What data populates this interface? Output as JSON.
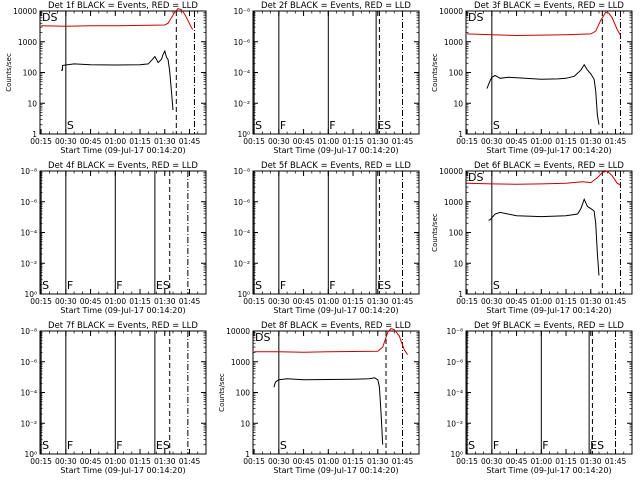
{
  "chart_data": [
    {
      "type": "line",
      "title": "Det 1f BLACK = Events, RED = LLD",
      "corner_label": "DS",
      "xlabel": "Start Time (09-Jul-17 00:14:20)",
      "ylabel": "Counts/sec",
      "y_scale": "log",
      "yticks": [
        "1",
        "10",
        "100",
        "1000",
        "10000"
      ],
      "xticks": [
        "00:15",
        "00:30",
        "00:45",
        "01:00",
        "01:15",
        "01:30",
        "01:45"
      ],
      "markers": [
        {
          "t": "00:30",
          "label": "S",
          "style": "solid"
        },
        {
          "t": "01:37",
          "label": "",
          "style": "dashed"
        },
        {
          "t": "01:48",
          "label": "",
          "style": "dashdot"
        }
      ],
      "series": [
        {
          "name": "Events",
          "color": "#000000",
          "points": [
            [
              "00:27",
              120
            ],
            [
              "00:28",
              120
            ],
            [
              "00:28",
              170
            ],
            [
              "00:35",
              190
            ],
            [
              "00:45",
              180
            ],
            [
              "01:00",
              175
            ],
            [
              "01:15",
              180
            ],
            [
              "01:20",
              190
            ],
            [
              "01:24",
              330
            ],
            [
              "01:26",
              210
            ],
            [
              "01:28",
              270
            ],
            [
              "01:29",
              390
            ],
            [
              "01:30",
              500
            ],
            [
              "01:31",
              320
            ],
            [
              "01:32",
              260
            ],
            [
              "01:33",
              110
            ],
            [
              "01:34",
              25
            ],
            [
              "01:35",
              6
            ]
          ]
        },
        {
          "name": "LLD",
          "color": "#cc0000",
          "points": [
            [
              "00:15",
              3300
            ],
            [
              "00:30",
              3200
            ],
            [
              "00:45",
              3300
            ],
            [
              "01:00",
              3300
            ],
            [
              "01:15",
              3400
            ],
            [
              "01:30",
              3500
            ],
            [
              "01:32",
              4000
            ],
            [
              "01:34",
              6000
            ],
            [
              "01:36",
              9000
            ],
            [
              "01:38",
              12000
            ],
            [
              "01:40",
              11000
            ],
            [
              "01:42",
              8000
            ],
            [
              "01:44",
              5000
            ],
            [
              "01:46",
              3000
            ],
            [
              "01:47",
              2500
            ]
          ]
        }
      ]
    },
    {
      "type": "line",
      "title": "Det 2f BLACK = Events, RED = LLD",
      "corner_label": "",
      "xlabel": "Start Time (09-Jul-17 00:14:20)",
      "ylabel": "",
      "y_scale": "log",
      "yticks": [
        "10⁰",
        "10⁻²",
        "10⁻⁴",
        "10⁻⁶",
        "10⁻⁸"
      ],
      "xticks": [
        "00:15",
        "00:30",
        "00:45",
        "01:00",
        "01:15",
        "01:30",
        "01:45"
      ],
      "markers": [
        {
          "t": "00:15",
          "label": "S",
          "style": "solid"
        },
        {
          "t": "00:30",
          "label": "F",
          "style": "solid"
        },
        {
          "t": "01:00",
          "label": "F",
          "style": "solid"
        },
        {
          "t": "01:29",
          "label": "ES",
          "style": "solid"
        },
        {
          "t": "01:31",
          "label": "",
          "style": "dashed"
        },
        {
          "t": "01:45",
          "label": "",
          "style": "dashdot"
        }
      ],
      "series": []
    },
    {
      "type": "line",
      "title": "Det 3f BLACK = Events, RED = LLD",
      "corner_label": "DS",
      "xlabel": "Start Time (09-Jul-17 00:14:20)",
      "ylabel": "Counts/sec",
      "y_scale": "log",
      "yticks": [
        "1",
        "10",
        "100",
        "1000",
        "10000"
      ],
      "xticks": [
        "00:15",
        "00:30",
        "00:45",
        "01:00",
        "01:15",
        "01:30",
        "01:45"
      ],
      "markers": [
        {
          "t": "00:30",
          "label": "S",
          "style": "solid"
        },
        {
          "t": "01:37",
          "label": "",
          "style": "dashed"
        },
        {
          "t": "01:48",
          "label": "",
          "style": "dashdot"
        }
      ],
      "series": [
        {
          "name": "Events",
          "color": "#000000",
          "points": [
            [
              "00:27",
              30
            ],
            [
              "00:28",
              40
            ],
            [
              "00:29",
              55
            ],
            [
              "00:30",
              70
            ],
            [
              "00:32",
              80
            ],
            [
              "00:35",
              65
            ],
            [
              "00:40",
              70
            ],
            [
              "00:50",
              65
            ],
            [
              "01:00",
              60
            ],
            [
              "01:10",
              62
            ],
            [
              "01:15",
              65
            ],
            [
              "01:20",
              75
            ],
            [
              "01:24",
              120
            ],
            [
              "01:26",
              180
            ],
            [
              "01:28",
              120
            ],
            [
              "01:30",
              90
            ],
            [
              "01:32",
              60
            ],
            [
              "01:33",
              25
            ],
            [
              "01:34",
              4
            ],
            [
              "01:35",
              2
            ]
          ]
        },
        {
          "name": "LLD",
          "color": "#cc0000",
          "points": [
            [
              "00:15",
              1800
            ],
            [
              "00:30",
              1700
            ],
            [
              "00:45",
              1600
            ],
            [
              "01:00",
              1650
            ],
            [
              "01:15",
              1700
            ],
            [
              "01:30",
              1800
            ],
            [
              "01:33",
              2200
            ],
            [
              "01:36",
              5000
            ],
            [
              "01:39",
              9000
            ],
            [
              "01:41",
              8500
            ],
            [
              "01:43",
              6000
            ],
            [
              "01:46",
              2500
            ],
            [
              "01:48",
              1600
            ]
          ]
        }
      ]
    },
    {
      "type": "line",
      "title": "Det 4f BLACK = Events, RED = LLD",
      "corner_label": "",
      "xlabel": "Start Time (09-Jul-17 00:14:20)",
      "ylabel": "",
      "y_scale": "log",
      "yticks": [
        "10⁰",
        "10⁻²",
        "10⁻⁴",
        "10⁻⁶",
        "10⁻⁸"
      ],
      "xticks": [
        "00:15",
        "00:30",
        "00:45",
        "01:00",
        "01:15",
        "01:30",
        "01:45"
      ],
      "markers": [
        {
          "t": "00:15",
          "label": "S",
          "style": "solid"
        },
        {
          "t": "00:30",
          "label": "F",
          "style": "solid"
        },
        {
          "t": "01:00",
          "label": "F",
          "style": "solid"
        },
        {
          "t": "01:24",
          "label": "ES",
          "style": "solid"
        },
        {
          "t": "01:33",
          "label": "",
          "style": "dashed"
        },
        {
          "t": "01:44",
          "label": "",
          "style": "dashdot"
        }
      ],
      "series": []
    },
    {
      "type": "line",
      "title": "Det 5f BLACK = Events, RED = LLD",
      "corner_label": "",
      "xlabel": "Start Time (09-Jul-17 00:14:20)",
      "ylabel": "",
      "y_scale": "log",
      "yticks": [
        "10⁰",
        "10⁻²",
        "10⁻⁴",
        "10⁻⁶",
        "10⁻⁸"
      ],
      "xticks": [
        "00:15",
        "00:30",
        "00:45",
        "01:00",
        "01:15",
        "01:30",
        "01:45"
      ],
      "markers": [
        {
          "t": "00:15",
          "label": "S",
          "style": "solid"
        },
        {
          "t": "00:30",
          "label": "F",
          "style": "solid"
        },
        {
          "t": "01:00",
          "label": "F",
          "style": "solid"
        },
        {
          "t": "01:29",
          "label": "ES",
          "style": "solid"
        },
        {
          "t": "01:31",
          "label": "",
          "style": "dashed"
        },
        {
          "t": "01:45",
          "label": "",
          "style": "dashdot"
        }
      ],
      "series": []
    },
    {
      "type": "line",
      "title": "Det 6f BLACK = Events, RED = LLD",
      "corner_label": "DS",
      "xlabel": "Start Time (09-Jul-17 00:14:20)",
      "ylabel": "Counts/sec",
      "y_scale": "log",
      "yticks": [
        "1",
        "10",
        "100",
        "1000",
        "10000"
      ],
      "xticks": [
        "00:15",
        "00:30",
        "00:45",
        "01:00",
        "01:15",
        "01:30",
        "01:45"
      ],
      "markers": [
        {
          "t": "00:30",
          "label": "S",
          "style": "solid"
        },
        {
          "t": "01:37",
          "label": "",
          "style": "dashed"
        },
        {
          "t": "01:48",
          "label": "",
          "style": "dashdot"
        }
      ],
      "series": [
        {
          "name": "Events",
          "color": "#000000",
          "points": [
            [
              "00:28",
              250
            ],
            [
              "00:29",
              260
            ],
            [
              "00:30",
              300
            ],
            [
              "00:32",
              400
            ],
            [
              "00:35",
              450
            ],
            [
              "00:45",
              350
            ],
            [
              "01:00",
              330
            ],
            [
              "01:15",
              350
            ],
            [
              "01:22",
              400
            ],
            [
              "01:24",
              600
            ],
            [
              "01:26",
              1200
            ],
            [
              "01:28",
              700
            ],
            [
              "01:30",
              600
            ],
            [
              "01:32",
              500
            ],
            [
              "01:33",
              200
            ],
            [
              "01:34",
              20
            ],
            [
              "01:35",
              4
            ]
          ]
        },
        {
          "name": "LLD",
          "color": "#cc0000",
          "points": [
            [
              "00:15",
              4000
            ],
            [
              "00:30",
              3800
            ],
            [
              "00:45",
              3700
            ],
            [
              "01:00",
              3800
            ],
            [
              "01:15",
              4000
            ],
            [
              "01:25",
              4500
            ],
            [
              "01:30",
              4200
            ],
            [
              "01:34",
              6000
            ],
            [
              "01:37",
              9000
            ],
            [
              "01:40",
              10000
            ],
            [
              "01:43",
              7000
            ],
            [
              "01:46",
              4000
            ],
            [
              "01:48",
              3500
            ]
          ]
        }
      ]
    },
    {
      "type": "line",
      "title": "Det 7f BLACK = Events, RED = LLD",
      "corner_label": "",
      "xlabel": "Start Time (09-Jul-17 00:14:20)",
      "ylabel": "",
      "y_scale": "log",
      "yticks": [
        "10⁰",
        "10⁻²",
        "10⁻⁴",
        "10⁻⁶",
        "10⁻⁸"
      ],
      "xticks": [
        "00:15",
        "00:30",
        "00:45",
        "01:00",
        "01:15",
        "01:30",
        "01:45"
      ],
      "markers": [
        {
          "t": "00:15",
          "label": "S",
          "style": "solid"
        },
        {
          "t": "00:30",
          "label": "F",
          "style": "solid"
        },
        {
          "t": "01:00",
          "label": "F",
          "style": "solid"
        },
        {
          "t": "01:24",
          "label": "ES",
          "style": "solid"
        },
        {
          "t": "01:33",
          "label": "",
          "style": "dashed"
        },
        {
          "t": "01:44",
          "label": "",
          "style": "dashdot"
        }
      ],
      "series": []
    },
    {
      "type": "line",
      "title": "Det 8f BLACK = Events, RED = LLD",
      "corner_label": "DS",
      "xlabel": "Start Time (09-Jul-17 00:14:20)",
      "ylabel": "Counts/sec",
      "y_scale": "log",
      "yticks": [
        "1",
        "10",
        "100",
        "1000",
        "10000"
      ],
      "xticks": [
        "00:15",
        "00:30",
        "00:45",
        "01:00",
        "01:15",
        "01:30",
        "01:45"
      ],
      "markers": [
        {
          "t": "00:30",
          "label": "S",
          "style": "solid"
        },
        {
          "t": "01:35",
          "label": "",
          "style": "dashed"
        },
        {
          "t": "01:45",
          "label": "",
          "style": "dashdot"
        }
      ],
      "series": [
        {
          "name": "Events",
          "color": "#000000",
          "points": [
            [
              "00:27",
              150
            ],
            [
              "00:28",
              220
            ],
            [
              "00:30",
              260
            ],
            [
              "00:35",
              280
            ],
            [
              "00:45",
              260
            ],
            [
              "01:00",
              265
            ],
            [
              "01:15",
              270
            ],
            [
              "01:25",
              280
            ],
            [
              "01:28",
              300
            ],
            [
              "01:30",
              260
            ],
            [
              "01:31",
              150
            ],
            [
              "01:32",
              20
            ],
            [
              "01:33",
              2
            ]
          ]
        },
        {
          "name": "LLD",
          "color": "#cc0000",
          "points": [
            [
              "00:15",
              2100
            ],
            [
              "00:30",
              2100
            ],
            [
              "00:45",
              2050
            ],
            [
              "01:00",
              2100
            ],
            [
              "01:15",
              2150
            ],
            [
              "01:30",
              2200
            ],
            [
              "01:33",
              3000
            ],
            [
              "01:36",
              9000
            ],
            [
              "01:38",
              12000
            ],
            [
              "01:40",
              11000
            ],
            [
              "01:43",
              7000
            ],
            [
              "01:46",
              2500
            ],
            [
              "01:48",
              1700
            ]
          ]
        }
      ]
    },
    {
      "type": "line",
      "title": "Det 9f BLACK = Events, RED = LLD",
      "corner_label": "",
      "xlabel": "Start Time (09-Jul-17 00:14:20)",
      "ylabel": "",
      "y_scale": "log",
      "yticks": [
        "10⁰",
        "10⁻²",
        "10⁻⁴",
        "10⁻⁶",
        "10⁻⁸"
      ],
      "xticks": [
        "00:15",
        "00:30",
        "00:45",
        "01:00",
        "01:15",
        "01:30",
        "01:45"
      ],
      "markers": [
        {
          "t": "00:15",
          "label": "S",
          "style": "solid"
        },
        {
          "t": "00:30",
          "label": "F",
          "style": "solid"
        },
        {
          "t": "01:00",
          "label": "F",
          "style": "solid"
        },
        {
          "t": "01:29",
          "label": "ES",
          "style": "solid"
        },
        {
          "t": "01:31",
          "label": "",
          "style": "dashed"
        },
        {
          "t": "01:45",
          "label": "",
          "style": "dashdot"
        }
      ],
      "series": []
    }
  ]
}
